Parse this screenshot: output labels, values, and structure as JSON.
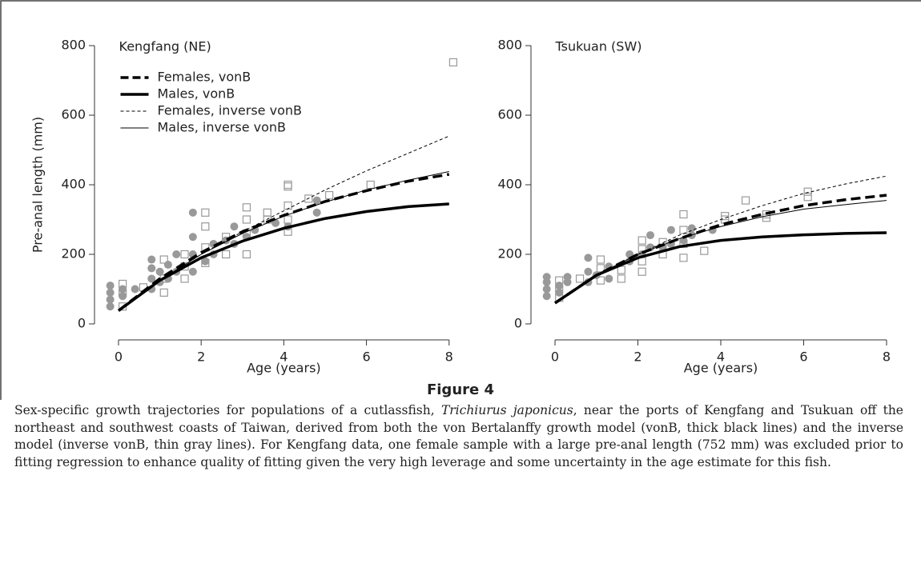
{
  "figure_label": "Figure 4",
  "caption": [
    "Sex-specific growth trajectories for populations of a cutlassfish, ",
    "Trichiurus japonicus",
    ", near the ports of Kengfang and Tsukuan off the northeast and southwest coasts of Taiwan, derived from both the von Bertalanffy growth model (vonB, thick black lines) and the inverse model (inverse vonB, thin gray lines). For Kengfang data, one female sample with a large pre-anal length (752 mm) was excluded prior to fitting regression to enhance quality of fitting given the very high leverage and some uncertainty in the age estimate for this fish."
  ],
  "chart_data": [
    {
      "type": "scatter",
      "panel_label": "Kengfang (NE)",
      "xlabel": "Age (years)",
      "ylabel": "Pre-anal length (mm)",
      "xlim": [
        -0.3,
        8.4
      ],
      "ylim": [
        -40,
        830
      ],
      "xticks": [
        0,
        2,
        4,
        6,
        8
      ],
      "yticks": [
        0,
        200,
        400,
        600,
        800
      ],
      "legend": "upper left",
      "series": [
        {
          "name": "Females, vonB",
          "color": "#000000",
          "thick": true,
          "dashed": true,
          "x": [
            0,
            1,
            2,
            3,
            4,
            5,
            6,
            7,
            8
          ],
          "values": [
            38,
            130,
            205,
            265,
            312,
            352,
            383,
            410,
            430
          ]
        },
        {
          "name": "Males, vonB",
          "color": "#000000",
          "thick": true,
          "dashed": false,
          "x": [
            0,
            1,
            2,
            3,
            4,
            5,
            6,
            7,
            8
          ],
          "values": [
            38,
            125,
            190,
            238,
            275,
            303,
            323,
            337,
            345
          ]
        },
        {
          "name": "Females, inverse vonB",
          "color": "#000000",
          "thick": false,
          "dashed": true,
          "x": [
            0,
            1,
            2,
            3,
            4,
            5,
            6,
            7,
            8
          ],
          "values": [
            40,
            125,
            200,
            265,
            325,
            385,
            440,
            490,
            540
          ]
        },
        {
          "name": "Males, inverse vonB",
          "color": "#000000",
          "thick": false,
          "dashed": false,
          "x": [
            0,
            1,
            2,
            3,
            4,
            5,
            6,
            7,
            8
          ],
          "values": [
            40,
            125,
            200,
            260,
            310,
            350,
            385,
            413,
            438
          ]
        }
      ],
      "points": [
        {
          "marker": "circle",
          "color": "#999999",
          "x": [
            -0.2,
            -0.2,
            -0.2,
            -0.2,
            0.1,
            0.1,
            0.4,
            0.8,
            0.8,
            0.8,
            0.8,
            1.0,
            1.0,
            1.2,
            1.2,
            1.4,
            1.4,
            1.8,
            1.8,
            1.8,
            1.8,
            2.1,
            2.3,
            2.3,
            2.6,
            2.8,
            2.8,
            3.1,
            3.3,
            3.8,
            4.1,
            4.8,
            4.8
          ],
          "values": [
            50,
            70,
            90,
            110,
            80,
            100,
            100,
            100,
            130,
            160,
            185,
            120,
            150,
            130,
            170,
            150,
            200,
            150,
            200,
            250,
            320,
            180,
            200,
            230,
            240,
            230,
            280,
            250,
            270,
            290,
            280,
            320,
            355
          ]
        },
        {
          "marker": "square",
          "color": "#999999",
          "x": [
            0.1,
            0.1,
            0.1,
            0.6,
            1.1,
            1.1,
            1.1,
            1.6,
            1.6,
            1.6,
            2.1,
            2.1,
            2.1,
            2.1,
            2.6,
            2.6,
            3.1,
            3.1,
            3.1,
            3.1,
            3.6,
            3.6,
            4.1,
            4.1,
            4.1,
            4.1,
            4.1,
            4.6,
            5.1,
            6.1,
            8.1
          ],
          "values": [
            50,
            90,
            115,
            105,
            90,
            130,
            185,
            130,
            165,
            200,
            175,
            220,
            280,
            320,
            200,
            250,
            200,
            260,
            300,
            335,
            300,
            320,
            265,
            300,
            340,
            395,
            400,
            360,
            370,
            400,
            752
          ]
        }
      ]
    },
    {
      "type": "scatter",
      "panel_label": "Tsukuan (SW)",
      "xlabel": "Age (years)",
      "xlim": [
        -0.3,
        8.4
      ],
      "ylim": [
        -40,
        830
      ],
      "xticks": [
        0,
        2,
        4,
        6,
        8
      ],
      "yticks": [
        0,
        200,
        400,
        600,
        800
      ],
      "series": [
        {
          "color": "#000000",
          "thick": true,
          "dashed": true,
          "x": [
            0,
            1,
            2,
            3,
            4,
            5,
            6,
            7,
            8
          ],
          "values": [
            60,
            140,
            200,
            245,
            285,
            315,
            340,
            357,
            370
          ]
        },
        {
          "color": "#000000",
          "thick": true,
          "dashed": false,
          "x": [
            0,
            1,
            2,
            3,
            4,
            5,
            6,
            7,
            8
          ],
          "values": [
            60,
            140,
            190,
            222,
            240,
            250,
            256,
            260,
            262
          ]
        },
        {
          "color": "#000000",
          "thick": false,
          "dashed": true,
          "x": [
            0,
            1,
            2,
            3,
            4,
            5,
            6,
            7,
            8
          ],
          "values": [
            62,
            140,
            200,
            255,
            300,
            340,
            375,
            402,
            425
          ]
        },
        {
          "color": "#000000",
          "thick": false,
          "dashed": false,
          "x": [
            0,
            1,
            2,
            3,
            4,
            5,
            6,
            7,
            8
          ],
          "values": [
            62,
            140,
            200,
            245,
            280,
            308,
            330,
            343,
            355
          ]
        }
      ],
      "points": [
        {
          "marker": "circle",
          "color": "#999999",
          "x": [
            -0.2,
            -0.2,
            -0.2,
            -0.2,
            0.1,
            0.1,
            0.3,
            0.3,
            0.8,
            0.8,
            0.8,
            1.0,
            1.3,
            1.3,
            1.8,
            1.8,
            2.1,
            2.3,
            2.3,
            2.6,
            2.8,
            2.8,
            3.1,
            3.3,
            3.3,
            3.8
          ],
          "values": [
            80,
            100,
            120,
            135,
            90,
            110,
            120,
            135,
            120,
            150,
            190,
            140,
            130,
            165,
            180,
            200,
            200,
            220,
            255,
            220,
            230,
            270,
            240,
            255,
            275,
            270
          ]
        },
        {
          "marker": "square",
          "color": "#999999",
          "x": [
            0.1,
            0.1,
            0.1,
            0.6,
            1.1,
            1.1,
            1.1,
            1.6,
            1.6,
            2.1,
            2.1,
            2.1,
            2.1,
            2.6,
            2.6,
            3.1,
            3.1,
            3.1,
            3.1,
            3.6,
            4.1,
            4.1,
            4.6,
            5.1,
            5.1,
            6.1,
            6.1
          ],
          "values": [
            75,
            100,
            125,
            130,
            125,
            160,
            185,
            130,
            155,
            150,
            180,
            215,
            240,
            200,
            235,
            190,
            230,
            270,
            315,
            210,
            300,
            310,
            355,
            305,
            315,
            365,
            380
          ]
        }
      ]
    }
  ]
}
